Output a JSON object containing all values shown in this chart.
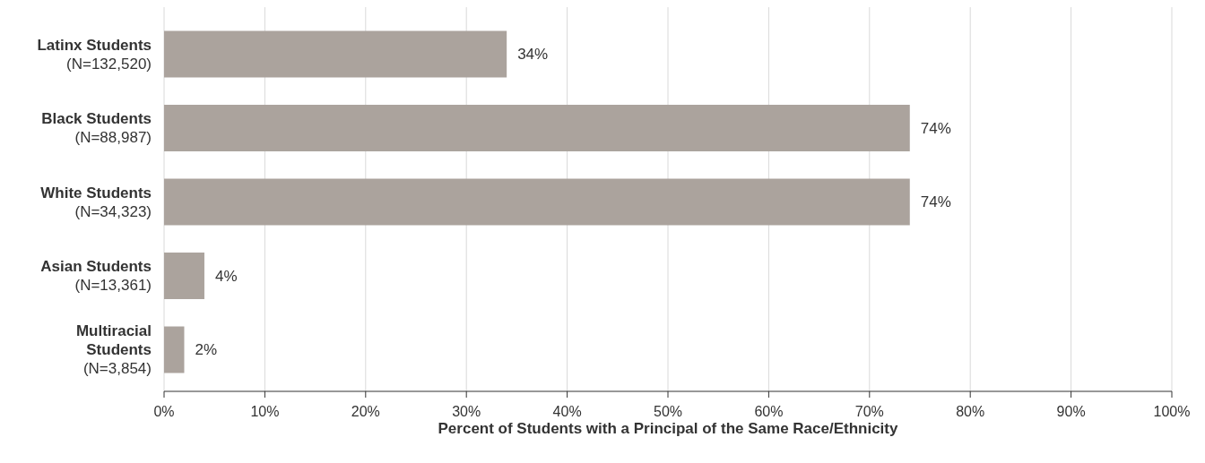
{
  "chart_data": {
    "type": "bar",
    "orientation": "horizontal",
    "xlabel": "Percent of Students with a Principal of the Same Race/Ethnicity",
    "categories": [
      "Latinx Students\n(N=132,520)",
      "Black Students\n(N=88,987)",
      "White Students\n(N=34,323)",
      "Asian Students\n(N=13,361)",
      "Multiracial\nStudents\n(N=3,854)"
    ],
    "values": [
      34,
      74,
      74,
      4,
      2
    ],
    "value_labels": [
      "34%",
      "74%",
      "74%",
      "4%",
      "2%"
    ],
    "color": "#aba39d",
    "xlim": [
      0,
      100
    ],
    "xticks": [
      {
        "value": 0,
        "label": "0%"
      },
      {
        "value": 10,
        "label": "10%"
      },
      {
        "value": 20,
        "label": "20%"
      },
      {
        "value": 30,
        "label": "30%"
      },
      {
        "value": 40,
        "label": "40%"
      },
      {
        "value": 50,
        "label": "50%"
      },
      {
        "value": 60,
        "label": "60%"
      },
      {
        "value": 70,
        "label": "70%"
      },
      {
        "value": 80,
        "label": "80%"
      },
      {
        "value": 90,
        "label": "90%"
      },
      {
        "value": 100,
        "label": "100%"
      }
    ],
    "grid": "x"
  }
}
